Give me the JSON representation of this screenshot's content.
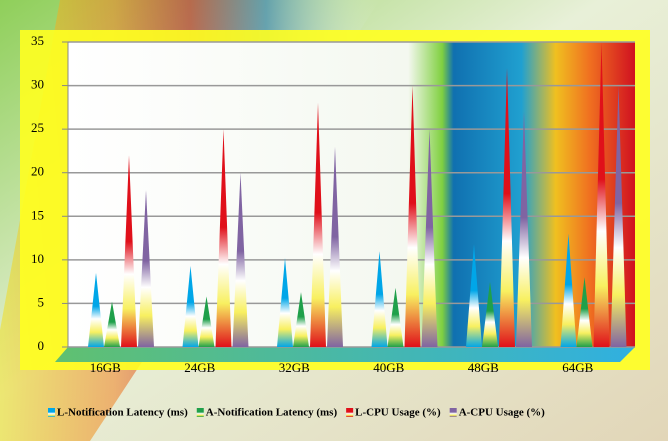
{
  "chart_data": {
    "type": "cone",
    "categories": [
      "16GB",
      "24GB",
      "32GB",
      "40GB",
      "48GB",
      "64GB"
    ],
    "series": [
      {
        "name": "L-Notification Latency (ms)",
        "color": "#00a6e8",
        "values": [
          8.5,
          9.3,
          10.2,
          11,
          11.8,
          13
        ]
      },
      {
        "name": "A-Notification Latency (ms)",
        "color": "#1fa04a",
        "values": [
          5.2,
          5.8,
          6.3,
          6.8,
          7.5,
          8
        ]
      },
      {
        "name": "L-CPU Usage (%)",
        "color": "#e0101a",
        "values": [
          22,
          25,
          28,
          30,
          32,
          35
        ]
      },
      {
        "name": "A-CPU Usage (%)",
        "color": "#8064a2",
        "values": [
          18,
          20,
          23,
          25,
          27,
          30
        ]
      }
    ],
    "ylim": [
      0,
      35
    ],
    "yticks": [
      0,
      5,
      10,
      15,
      20,
      25,
      30,
      35
    ],
    "grid": true,
    "legend": "bottom"
  }
}
